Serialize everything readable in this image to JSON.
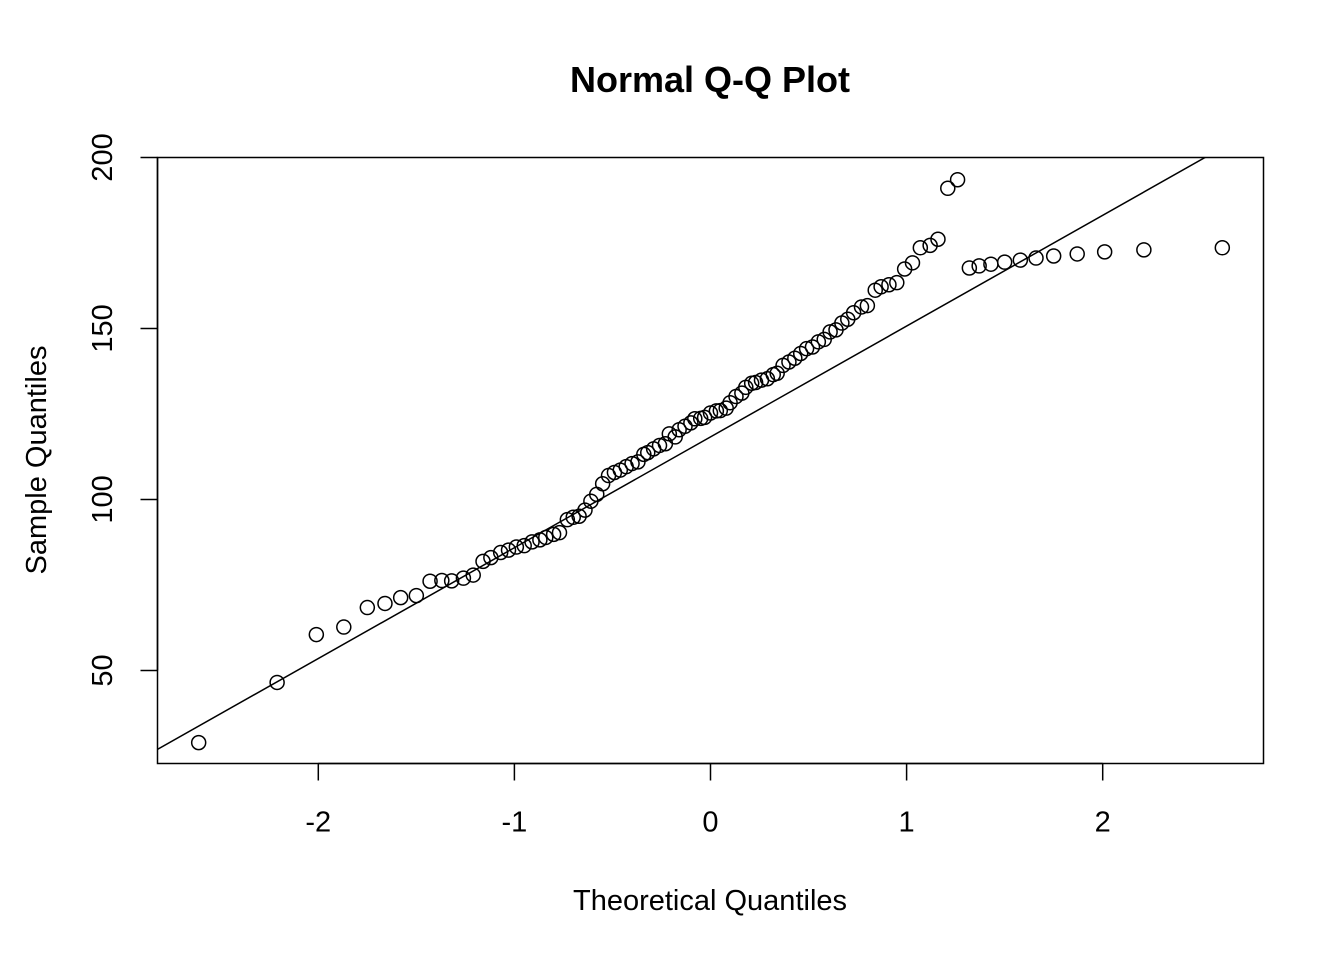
{
  "chart_data": {
    "type": "scatter",
    "title": "Normal Q-Q Plot",
    "xlabel": "Theoretical Quantiles",
    "ylabel": "Sample Quantiles",
    "xlim": [
      -2.82,
      2.82
    ],
    "ylim": [
      22.8,
      200
    ],
    "xticks": [
      -2,
      -1,
      0,
      1,
      2
    ],
    "xtick_labels": [
      "-2",
      "-1",
      "0",
      "1",
      "2"
    ],
    "yticks": [
      50,
      100,
      150,
      200
    ],
    "ytick_labels": [
      "50",
      "100",
      "150",
      "200"
    ],
    "grid": false,
    "reference_line": {
      "intercept": 118.3,
      "slope": 32.4
    },
    "x": [
      -2.61,
      -2.21,
      -2.01,
      -1.87,
      -1.75,
      -1.66,
      -1.58,
      -1.5,
      -1.43,
      -1.37,
      -1.32,
      -1.26,
      -1.21,
      -1.16,
      -1.12,
      -1.07,
      -1.03,
      -0.99,
      -0.95,
      -0.91,
      -0.87,
      -0.84,
      -0.8,
      -0.77,
      -0.73,
      -0.7,
      -0.67,
      -0.64,
      -0.61,
      -0.58,
      -0.55,
      -0.52,
      -0.49,
      -0.46,
      -0.43,
      -0.4,
      -0.37,
      -0.34,
      -0.32,
      -0.29,
      -0.26,
      -0.23,
      -0.21,
      -0.18,
      -0.16,
      -0.13,
      -0.1,
      -0.08,
      -0.05,
      -0.03,
      0.0,
      0.03,
      0.05,
      0.08,
      0.1,
      0.13,
      0.16,
      0.18,
      0.21,
      0.23,
      0.26,
      0.29,
      0.32,
      0.34,
      0.37,
      0.4,
      0.43,
      0.46,
      0.49,
      0.52,
      0.55,
      0.58,
      0.61,
      0.64,
      0.67,
      0.7,
      0.73,
      0.77,
      0.8,
      0.84,
      0.87,
      0.91,
      0.95,
      0.99,
      1.03,
      1.07,
      1.12,
      1.16,
      1.21,
      1.26,
      1.32,
      1.37,
      1.43,
      1.5,
      1.58,
      1.66,
      1.75,
      1.87,
      2.01,
      2.21,
      2.61
    ],
    "y": [
      28.9,
      46.5,
      60.5,
      62.7,
      68.4,
      69.6,
      71.3,
      71.9,
      76.1,
      76.3,
      76.2,
      77.0,
      77.9,
      81.9,
      83.0,
      84.5,
      85.2,
      86.1,
      86.5,
      87.6,
      88.2,
      88.9,
      89.8,
      90.3,
      94.1,
      94.8,
      95.1,
      96.9,
      99.5,
      101.5,
      104.6,
      107.0,
      107.9,
      108.6,
      109.6,
      110.5,
      111.0,
      113.2,
      113.7,
      114.8,
      115.8,
      116.3,
      119.2,
      118.3,
      120.4,
      121.4,
      122.4,
      123.6,
      123.7,
      124.0,
      125.3,
      125.9,
      126.0,
      126.7,
      128.3,
      130.1,
      131.1,
      132.8,
      134.0,
      134.2,
      134.9,
      135.3,
      136.5,
      136.9,
      139.2,
      140.2,
      141.3,
      142.7,
      144.1,
      144.6,
      146.1,
      146.8,
      149.0,
      149.6,
      151.6,
      152.7,
      154.6,
      156.3,
      156.7,
      161.2,
      162.2,
      162.8,
      163.4,
      167.4,
      169.2,
      173.6,
      174.3,
      176.1,
      191.0,
      193.5,
      167.7,
      168.3,
      168.8,
      169.4,
      170.0,
      170.6,
      171.2,
      171.8,
      172.4,
      173.0,
      173.6
    ]
  }
}
